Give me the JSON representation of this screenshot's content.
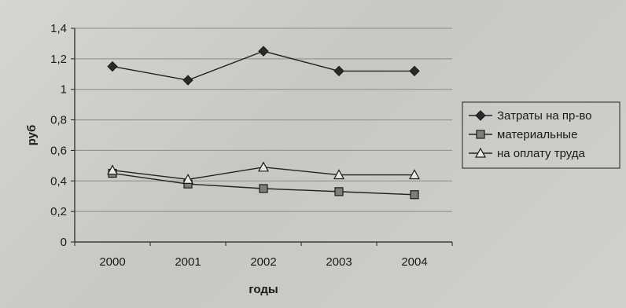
{
  "chart_data": {
    "type": "line",
    "title": "",
    "xlabel": "годы",
    "ylabel": "руб",
    "categories": [
      "2000",
      "2001",
      "2002",
      "2003",
      "2004"
    ],
    "ylim": [
      0,
      1.4
    ],
    "yticks": [
      "0",
      "0,2",
      "0,4",
      "0,6",
      "0,8",
      "1",
      "1,2",
      "1,4"
    ],
    "grid": true,
    "legend_position": "right",
    "series": [
      {
        "name": "Затраты на пр-во",
        "marker": "diamond",
        "values": [
          1.15,
          1.06,
          1.25,
          1.12,
          1.12
        ]
      },
      {
        "name": "материальные",
        "marker": "square",
        "values": [
          0.45,
          0.38,
          0.35,
          0.33,
          0.31
        ]
      },
      {
        "name": "на оплату труда",
        "marker": "triangle",
        "values": [
          0.47,
          0.41,
          0.49,
          0.44,
          0.44
        ]
      }
    ]
  }
}
